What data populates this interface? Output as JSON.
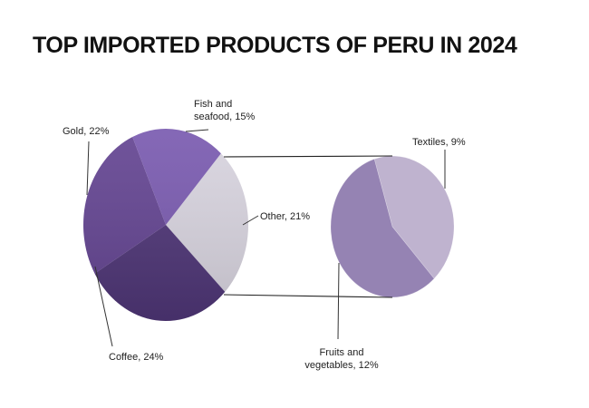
{
  "chart_data": {
    "type": "pie",
    "title": "TOP IMPORTED PRODUCTS OF PERU IN 2024",
    "slices": [
      {
        "label_lines": [
          "Other, 21%"
        ],
        "value": 21,
        "color": "#d8d4df"
      },
      {
        "label_lines": [
          "Coffee, 24%"
        ],
        "value": 24,
        "color": "#4f3677"
      },
      {
        "label_lines": [
          "Gold, 22%"
        ],
        "value": 22,
        "color": "#644592"
      },
      {
        "label_lines": [
          "Fish and",
          "seafood, 15%"
        ],
        "value": 15,
        "color": "#7a5bb0"
      }
    ],
    "breakout_of": "Other, 21%",
    "breakout_slices": [
      {
        "label_lines": [
          "Textiles, 9%"
        ],
        "value": 9,
        "color": "#bfb3cf"
      },
      {
        "label_lines": [
          "Fruits and",
          "vegetables, 12%"
        ],
        "value": 12,
        "color": "#9583b3"
      }
    ]
  }
}
